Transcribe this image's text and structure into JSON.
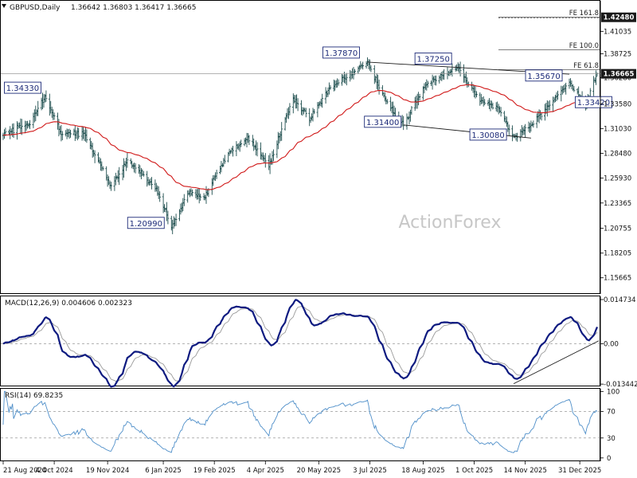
{
  "chart_data": {
    "type": "line",
    "symbol": "GBPUSD",
    "timeframe": "Daily",
    "header_title": "GBPUSD,Daily",
    "ohlc_header": "1.36642 1.36803 1.36417 1.36665",
    "open": 1.36642,
    "high": 1.36803,
    "low": 1.36417,
    "close": 1.36665,
    "last_price_label": "1.36665",
    "watermark": "ActionForex",
    "price_axis": {
      "ylim": [
        1.14,
        1.4418
      ],
      "ticks": [
        "1.41035",
        "1.38725",
        "1.36280",
        "1.33580",
        "1.31030",
        "1.28480",
        "1.25930",
        "1.23365",
        "1.20755",
        "1.18205",
        "1.15665"
      ],
      "top_tag": "1.42480"
    },
    "moving_average": "55-day EMA",
    "price_anchors": [
      {
        "date": "2024-08-21",
        "value": 1.305
      },
      {
        "date": "2024-09-13",
        "value": 1.316
      },
      {
        "date": "2024-09-26",
        "value": 1.3433
      },
      {
        "date": "2024-10-10",
        "value": 1.305
      },
      {
        "date": "2024-10-30",
        "value": 1.305
      },
      {
        "date": "2024-11-22",
        "value": 1.25
      },
      {
        "date": "2024-12-06",
        "value": 1.278
      },
      {
        "date": "2024-12-30",
        "value": 1.25
      },
      {
        "date": "2025-01-13",
        "value": 1.2099
      },
      {
        "date": "2025-01-28",
        "value": 1.245
      },
      {
        "date": "2025-02-10",
        "value": 1.238
      },
      {
        "date": "2025-03-03",
        "value": 1.285
      },
      {
        "date": "2025-03-20",
        "value": 1.3
      },
      {
        "date": "2025-04-07",
        "value": 1.272
      },
      {
        "date": "2025-04-28",
        "value": 1.342
      },
      {
        "date": "2025-05-12",
        "value": 1.32
      },
      {
        "date": "2025-05-30",
        "value": 1.352
      },
      {
        "date": "2025-07-01",
        "value": 1.3787
      },
      {
        "date": "2025-07-16",
        "value": 1.34
      },
      {
        "date": "2025-08-01",
        "value": 1.314
      },
      {
        "date": "2025-08-20",
        "value": 1.356
      },
      {
        "date": "2025-09-17",
        "value": 1.3725
      },
      {
        "date": "2025-10-07",
        "value": 1.338
      },
      {
        "date": "2025-10-23",
        "value": 1.33
      },
      {
        "date": "2025-11-04",
        "value": 1.3008
      },
      {
        "date": "2025-11-20",
        "value": 1.315
      },
      {
        "date": "2025-12-10",
        "value": 1.342
      },
      {
        "date": "2025-12-22",
        "value": 1.3567
      },
      {
        "date": "2026-01-05",
        "value": 1.3342
      },
      {
        "date": "2026-01-15",
        "value": 1.3666
      }
    ],
    "swing_labels": [
      {
        "text": "1.34330",
        "date": "2024-09-26",
        "value": 1.3433
      },
      {
        "text": "1.20990",
        "date": "2025-01-13",
        "value": 1.2099
      },
      {
        "text": "1.37870",
        "date": "2025-07-01",
        "value": 1.3787
      },
      {
        "text": "1.37250",
        "date": "2025-09-17",
        "value": 1.3725
      },
      {
        "text": "1.31400",
        "date": "2025-08-01",
        "value": 1.314
      },
      {
        "text": "1.30080",
        "date": "2025-11-04",
        "value": 1.3008
      },
      {
        "text": "1.35670",
        "date": "2025-12-22",
        "value": 1.3567
      },
      {
        "text": "1.33420",
        "date": "2026-01-05",
        "value": 1.3342
      }
    ],
    "fibonacci_extensions": [
      {
        "label": "FE 161.8",
        "value": 1.4248
      },
      {
        "label": "FE 100.0",
        "value": 1.3915
      },
      {
        "label": "FE 61.8",
        "value": 1.3709
      }
    ],
    "trendlines": [
      {
        "name": "upper-channel",
        "from": {
          "date": "2025-07-01",
          "value": 1.3787
        },
        "to": {
          "date": "2025-12-22",
          "value": 1.3663
        }
      },
      {
        "name": "lower-channel",
        "from": {
          "date": "2025-08-01",
          "value": 1.314
        },
        "to": {
          "date": "2025-11-19",
          "value": 1.3005
        }
      },
      {
        "name": "macd-support",
        "from": {
          "date": "2025-11-04",
          "value": -0.0133
        },
        "to": {
          "date": "2026-01-15",
          "value": 0.0002
        }
      }
    ],
    "resistance_level": 1.3666,
    "macd": {
      "label": "MACD(12,26,9) 0.004606 0.002323",
      "macd_value": 0.004606,
      "signal_value": 0.002323,
      "ylim": [
        -0.0142,
        0.0158
      ],
      "ticks": [
        "0.014734",
        "0.00",
        "-0.013442"
      ]
    },
    "rsi": {
      "label": "RSI(14) 69.8235",
      "value": 69.8235,
      "ylim": [
        -5,
        104
      ],
      "ticks": [
        "100",
        "70",
        "30",
        "0"
      ],
      "levels": [
        70,
        30
      ]
    },
    "x_axis": {
      "start_date": "2024-08-21",
      "end_date": "2026-01-15",
      "ticks": [
        {
          "label": "21 Aug 2024",
          "date": "2024-08-21"
        },
        {
          "label": "4 Oct 2024",
          "date": "2024-10-04"
        },
        {
          "label": "19 Nov 2024",
          "date": "2024-11-19"
        },
        {
          "label": "6 Jan 2025",
          "date": "2025-01-06"
        },
        {
          "label": "19 Feb 2025",
          "date": "2025-02-19"
        },
        {
          "label": "4 Apr 2025",
          "date": "2025-04-04"
        },
        {
          "label": "20 May 2025",
          "date": "2025-05-20"
        },
        {
          "label": "3 Jul 2025",
          "date": "2025-07-03"
        },
        {
          "label": "18 Aug 2025",
          "date": "2025-08-18"
        },
        {
          "label": "1 Oct 2025",
          "date": "2025-10-01"
        },
        {
          "label": "14 Nov 2025",
          "date": "2025-11-14"
        },
        {
          "label": "31 Dec 2025",
          "date": "2025-12-31"
        }
      ]
    },
    "colors": {
      "bars": "#1f4f4f",
      "ema": "#d01818",
      "macd_line": "#0d1a80",
      "signal_line": "#9a9a9a",
      "rsi_line": "#4f8fc9",
      "label_border": "#1c2a78",
      "tag_background": "#1a1a1a"
    }
  }
}
